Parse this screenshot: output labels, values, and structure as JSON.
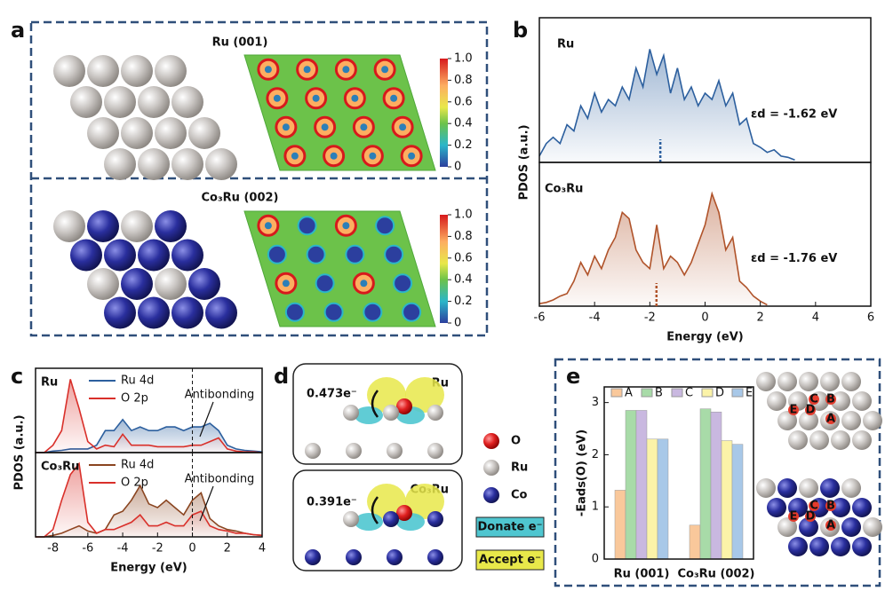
{
  "panel_labels": [
    "a",
    "b",
    "c",
    "d",
    "e"
  ],
  "surfaces": [
    {
      "title": "Ru (001)"
    },
    {
      "title": "Co₃Ru (002)"
    }
  ],
  "colorbar": {
    "ticks": [
      {
        "value": 1,
        "label": "1.0"
      },
      0.8,
      0.6,
      0.4,
      0.2,
      0
    ]
  },
  "charge": [
    {
      "transfer": "0.473e⁻",
      "label": "Ru"
    },
    {
      "transfer": "0.391e⁻",
      "label": "Co₃Ru"
    }
  ],
  "legend_atoms": [
    "O",
    "Ru",
    "Co"
  ],
  "legend_density": [
    "Donate e⁻",
    "Accept e⁻"
  ],
  "sites": [
    "A",
    "B",
    "C",
    "D",
    "E"
  ],
  "chart_data": [
    {
      "type": "area",
      "label": "Ru",
      "ylabel": "PDOS (a.u.)",
      "x": [
        -6,
        -5.75,
        -5.5,
        -5.25,
        -5,
        -4.75,
        -4.5,
        -4.25,
        -4,
        -3.75,
        -3.5,
        -3.25,
        -3,
        -2.75,
        -2.5,
        -2.25,
        -2,
        -1.75,
        -1.5,
        -1.25,
        -1,
        -0.75,
        -0.5,
        -0.25,
        0,
        0.25,
        0.5,
        0.75,
        1,
        1.25,
        1.5,
        1.75,
        2,
        2.25,
        2.5,
        2.75,
        3,
        3.25
      ],
      "series": [
        {
          "color": "#2c5f9e",
          "values": [
            0.05,
            0.15,
            0.2,
            0.15,
            0.3,
            0.25,
            0.45,
            0.35,
            0.55,
            0.4,
            0.5,
            0.45,
            0.6,
            0.5,
            0.75,
            0.6,
            0.9,
            0.7,
            0.85,
            0.55,
            0.75,
            0.5,
            0.6,
            0.45,
            0.55,
            0.5,
            0.65,
            0.45,
            0.55,
            0.3,
            0.35,
            0.15,
            0.12,
            0.08,
            0.1,
            0.05,
            0.04,
            0.02
          ]
        }
      ],
      "xlim": [
        -6,
        6
      ],
      "ylim": [
        0,
        1.15
      ],
      "d_band_center": {
        "value": -1.62,
        "label": "εd = -1.62 eV"
      }
    },
    {
      "type": "area",
      "label": "Co₃Ru",
      "xlabel": "Energy (eV)",
      "x": [
        -6,
        -5.75,
        -5.5,
        -5.25,
        -5,
        -4.75,
        -4.5,
        -4.25,
        -4,
        -3.75,
        -3.5,
        -3.25,
        -3,
        -2.75,
        -2.5,
        -2.25,
        -2,
        -1.75,
        -1.5,
        -1.25,
        -1,
        -0.75,
        -0.5,
        -0.25,
        0,
        0.25,
        0.5,
        0.75,
        1,
        1.25,
        1.5,
        1.75,
        2,
        2.25
      ],
      "series": [
        {
          "color": "#b0532a",
          "values": [
            0.02,
            0.03,
            0.05,
            0.08,
            0.1,
            0.2,
            0.35,
            0.25,
            0.4,
            0.3,
            0.45,
            0.55,
            0.75,
            0.7,
            0.45,
            0.35,
            0.3,
            0.65,
            0.3,
            0.4,
            0.35,
            0.25,
            0.35,
            0.5,
            0.65,
            0.9,
            0.75,
            0.45,
            0.55,
            0.2,
            0.15,
            0.08,
            0.04,
            0.01
          ]
        }
      ],
      "xlim": [
        -6,
        6
      ],
      "xticks": [
        -6,
        -4,
        -2,
        0,
        2,
        4,
        6
      ],
      "ylim": [
        0,
        1.15
      ],
      "d_band_center": {
        "value": -1.76,
        "label": "εd = -1.76 eV"
      }
    },
    {
      "type": "area",
      "label": "Ru",
      "ylabel": "PDOS (a.u.)",
      "annotation": "Antibonding",
      "fermi_line": 0,
      "x": [
        -9,
        -8.5,
        -8,
        -7.5,
        -7,
        -6.5,
        -6,
        -5.5,
        -5,
        -4.5,
        -4,
        -3.5,
        -3,
        -2.5,
        -2,
        -1.5,
        -1,
        -0.5,
        0,
        0.5,
        1,
        1.5,
        2,
        2.5,
        3,
        3.5,
        4
      ],
      "series": [
        {
          "name": "Ru 4d",
          "color": "#2c5f9e",
          "values": [
            0,
            0,
            0.02,
            0.03,
            0.05,
            0.05,
            0.05,
            0.1,
            0.3,
            0.3,
            0.45,
            0.3,
            0.35,
            0.3,
            0.3,
            0.35,
            0.35,
            0.3,
            0.35,
            0.35,
            0.4,
            0.3,
            0.1,
            0.05,
            0.03,
            0.02,
            0.01
          ]
        },
        {
          "name": "O 2p",
          "color": "#d9302a",
          "values": [
            0,
            0,
            0.1,
            0.3,
            1.0,
            0.6,
            0.15,
            0.05,
            0.1,
            0.08,
            0.25,
            0.1,
            0.1,
            0.1,
            0.08,
            0.08,
            0.08,
            0.08,
            0.1,
            0.1,
            0.15,
            0.2,
            0.05,
            0.02,
            0.01,
            0.01,
            0
          ]
        }
      ],
      "xlim": [
        -9,
        4
      ],
      "ylim": [
        0,
        1.15
      ]
    },
    {
      "type": "area",
      "label": "Co₃Ru",
      "xlabel": "Energy (eV)",
      "annotation": "Antibonding",
      "fermi_line": 0,
      "x": [
        -9,
        -8.5,
        -8,
        -7.5,
        -7,
        -6.5,
        -6,
        -5.5,
        -5,
        -4.5,
        -4,
        -3.5,
        -3,
        -2.5,
        -2,
        -1.5,
        -1,
        -0.5,
        0,
        0.5,
        1,
        1.5,
        2,
        2.5,
        3,
        3.5,
        4
      ],
      "series": [
        {
          "name": "Ru 4d",
          "color": "#8a4520",
          "values": [
            0,
            0,
            0.02,
            0.05,
            0.1,
            0.15,
            0.08,
            0.05,
            0.1,
            0.3,
            0.35,
            0.5,
            0.7,
            0.45,
            0.4,
            0.5,
            0.4,
            0.3,
            0.5,
            0.6,
            0.25,
            0.15,
            0.1,
            0.08,
            0.05,
            0.03,
            0.02
          ]
        },
        {
          "name": "O 2p",
          "color": "#d9302a",
          "values": [
            0,
            0,
            0.1,
            0.5,
            0.85,
            1.0,
            0.2,
            0.05,
            0.1,
            0.1,
            0.15,
            0.2,
            0.3,
            0.15,
            0.15,
            0.2,
            0.15,
            0.15,
            0.3,
            0.35,
            0.15,
            0.1,
            0.08,
            0.05,
            0.05,
            0.03,
            0.02
          ]
        }
      ],
      "xlim": [
        -9,
        4
      ],
      "xticks": [
        -8,
        -6,
        -4,
        -2,
        0,
        2,
        4
      ],
      "ylim": [
        0,
        1.15
      ]
    },
    {
      "type": "bar",
      "ylabel": "-Eads(O) (eV)",
      "categories": [
        "Ru (001)",
        "Co₃Ru (002)"
      ],
      "series": [
        {
          "name": "A",
          "color": "#f9c89b",
          "values": [
            1.32,
            0.65
          ]
        },
        {
          "name": "B",
          "color": "#a8dba8",
          "values": [
            2.85,
            2.88
          ]
        },
        {
          "name": "C",
          "color": "#c9b8e0",
          "values": [
            2.85,
            2.82
          ]
        },
        {
          "name": "D",
          "color": "#fbf3a8",
          "values": [
            2.3,
            2.27
          ]
        },
        {
          "name": "E",
          "color": "#a8c8e8",
          "values": [
            2.3,
            2.2
          ]
        }
      ],
      "ylim": [
        0,
        3.3
      ],
      "yticks": [
        0,
        1,
        2,
        3
      ]
    }
  ]
}
